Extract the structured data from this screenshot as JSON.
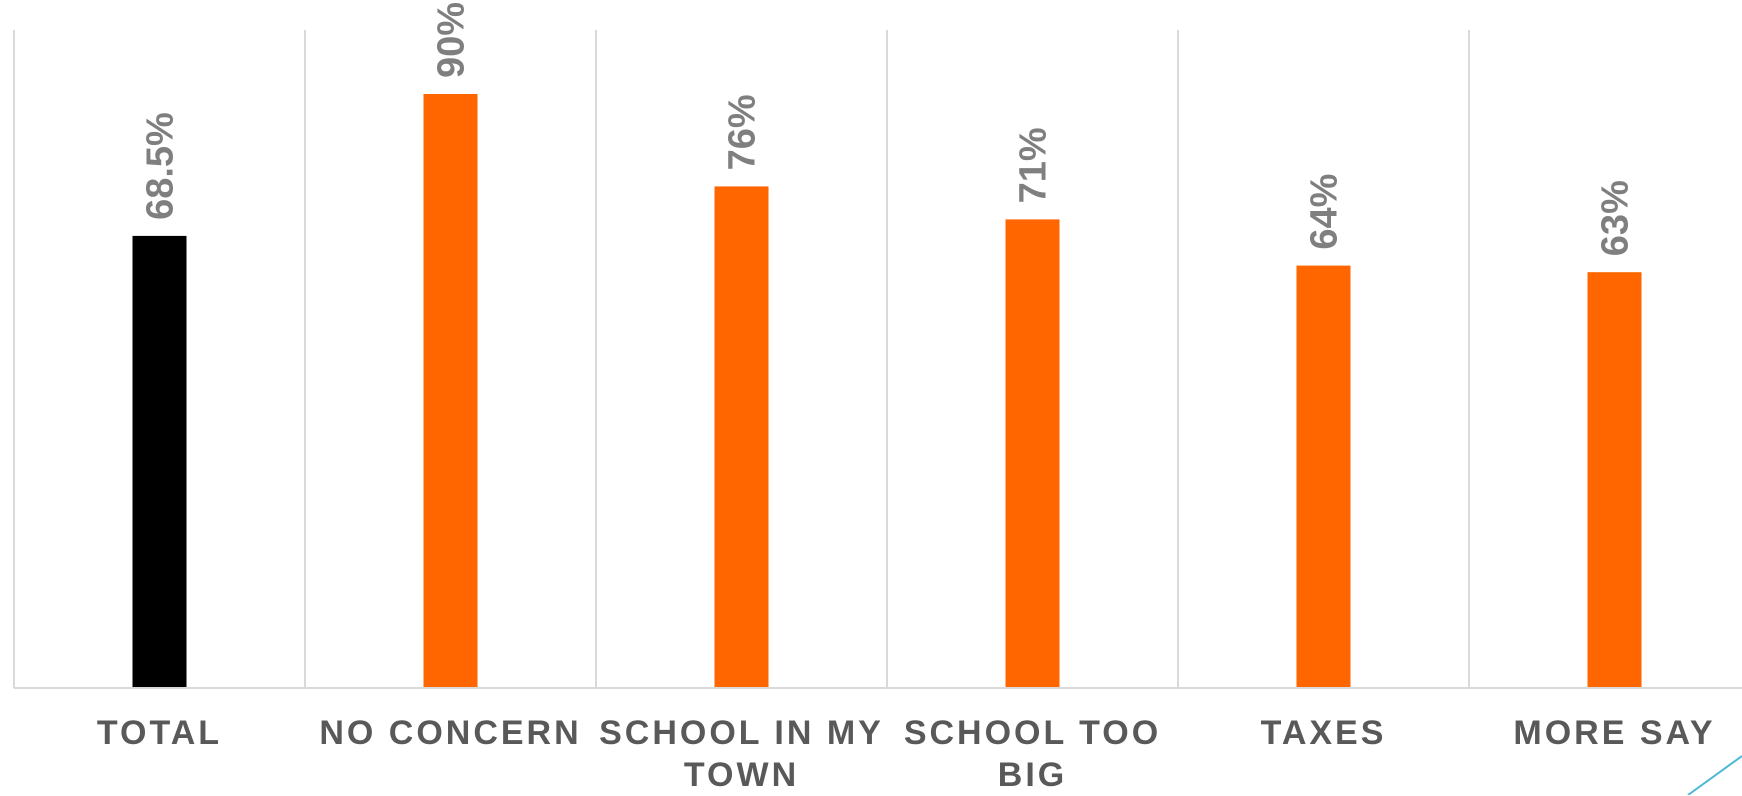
{
  "chart_data": {
    "type": "bar",
    "title": "",
    "xlabel": "",
    "ylabel": "",
    "ylim": [
      0,
      100
    ],
    "grid": "vertical separators",
    "categories": [
      "TOTAL",
      "NO CONCERN",
      "SCHOOL IN MY TOWN",
      "SCHOOL TOO BIG",
      "TAXES",
      "MORE SAY"
    ],
    "values": [
      68.5,
      90,
      76,
      71,
      64,
      63
    ],
    "data_labels": [
      "68.5%",
      "90%",
      "76%",
      "71%",
      "64%",
      "63%"
    ],
    "bar_colors": [
      "#000000",
      "#ff6600",
      "#ff6600",
      "#ff6600",
      "#ff6600",
      "#ff6600"
    ]
  },
  "colors": {
    "label_text": "#595959",
    "data_label_text": "#7f7f7f",
    "gridline": "#d9d9d9",
    "accent_line": "#4bb8d6"
  }
}
